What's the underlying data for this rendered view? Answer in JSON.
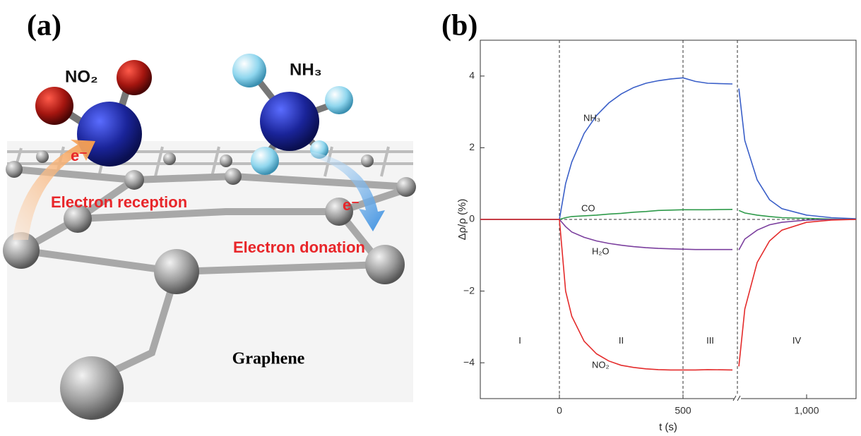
{
  "figure_a": {
    "label": "(a)",
    "molecule_1": "NO₂",
    "molecule_2": "NH₃",
    "electron_1": "e⁻",
    "electron_2": "e⁻",
    "process_1": "Electron reception",
    "process_2": "Electron donation",
    "caption": "Graphene"
  },
  "chart_data": {
    "type": "line",
    "label": "(b)",
    "y_label": "Δρ/ρ (%)",
    "x_label": "t (s)",
    "x": [
      -320,
      -200,
      -100,
      0,
      25,
      50,
      100,
      150,
      200,
      250,
      300,
      350,
      400,
      450,
      500,
      550,
      600,
      700,
      710,
      726,
      750,
      800,
      850,
      900,
      1000,
      1100,
      1200
    ],
    "series": [
      {
        "name": "NH₃",
        "color": "#3a5fc8",
        "values": [
          0,
          0,
          0,
          0,
          1.0,
          1.6,
          2.4,
          2.9,
          3.25,
          3.5,
          3.68,
          3.8,
          3.87,
          3.92,
          3.95,
          3.85,
          3.8,
          3.78,
          null,
          3.65,
          2.2,
          1.1,
          0.55,
          0.3,
          0.12,
          0.05,
          0.02
        ]
      },
      {
        "name": "CO",
        "color": "#2e9a4a",
        "values": [
          0,
          0,
          0,
          0,
          0.05,
          0.08,
          0.1,
          0.12,
          0.15,
          0.17,
          0.2,
          0.22,
          0.25,
          0.26,
          0.27,
          0.27,
          0.27,
          0.28,
          null,
          0.25,
          0.18,
          0.12,
          0.08,
          0.05,
          0.03,
          0.01,
          0
        ]
      },
      {
        "name": "H₂O",
        "color": "#7b3f9e",
        "values": [
          0,
          0,
          0,
          0,
          -0.2,
          -0.35,
          -0.5,
          -0.6,
          -0.67,
          -0.72,
          -0.76,
          -0.79,
          -0.81,
          -0.82,
          -0.83,
          -0.84,
          -0.84,
          -0.84,
          null,
          -0.85,
          -0.55,
          -0.3,
          -0.15,
          -0.08,
          -0.02,
          0,
          0
        ]
      },
      {
        "name": "NO₂",
        "color": "#e42b2b",
        "values": [
          0,
          0,
          0,
          0,
          -2.0,
          -2.7,
          -3.4,
          -3.75,
          -3.95,
          -4.07,
          -4.13,
          -4.17,
          -4.19,
          -4.2,
          -4.2,
          -4.2,
          -4.19,
          -4.2,
          null,
          -4.1,
          -2.5,
          -1.2,
          -0.6,
          -0.3,
          -0.08,
          -0.02,
          0
        ]
      }
    ],
    "markers_x": [
      0,
      500,
      720
    ],
    "region_labels": [
      "I",
      "II",
      "III",
      "IV"
    ],
    "xlim": [
      -320,
      1200
    ],
    "ylim": [
      -5,
      5
    ],
    "xticks": [
      0,
      500,
      {
        "value": 1000,
        "label": "1,000"
      }
    ],
    "yticks": [
      {
        "value": -4,
        "label": "−4"
      },
      {
        "value": -2,
        "label": "−2"
      },
      0,
      2,
      4
    ]
  }
}
